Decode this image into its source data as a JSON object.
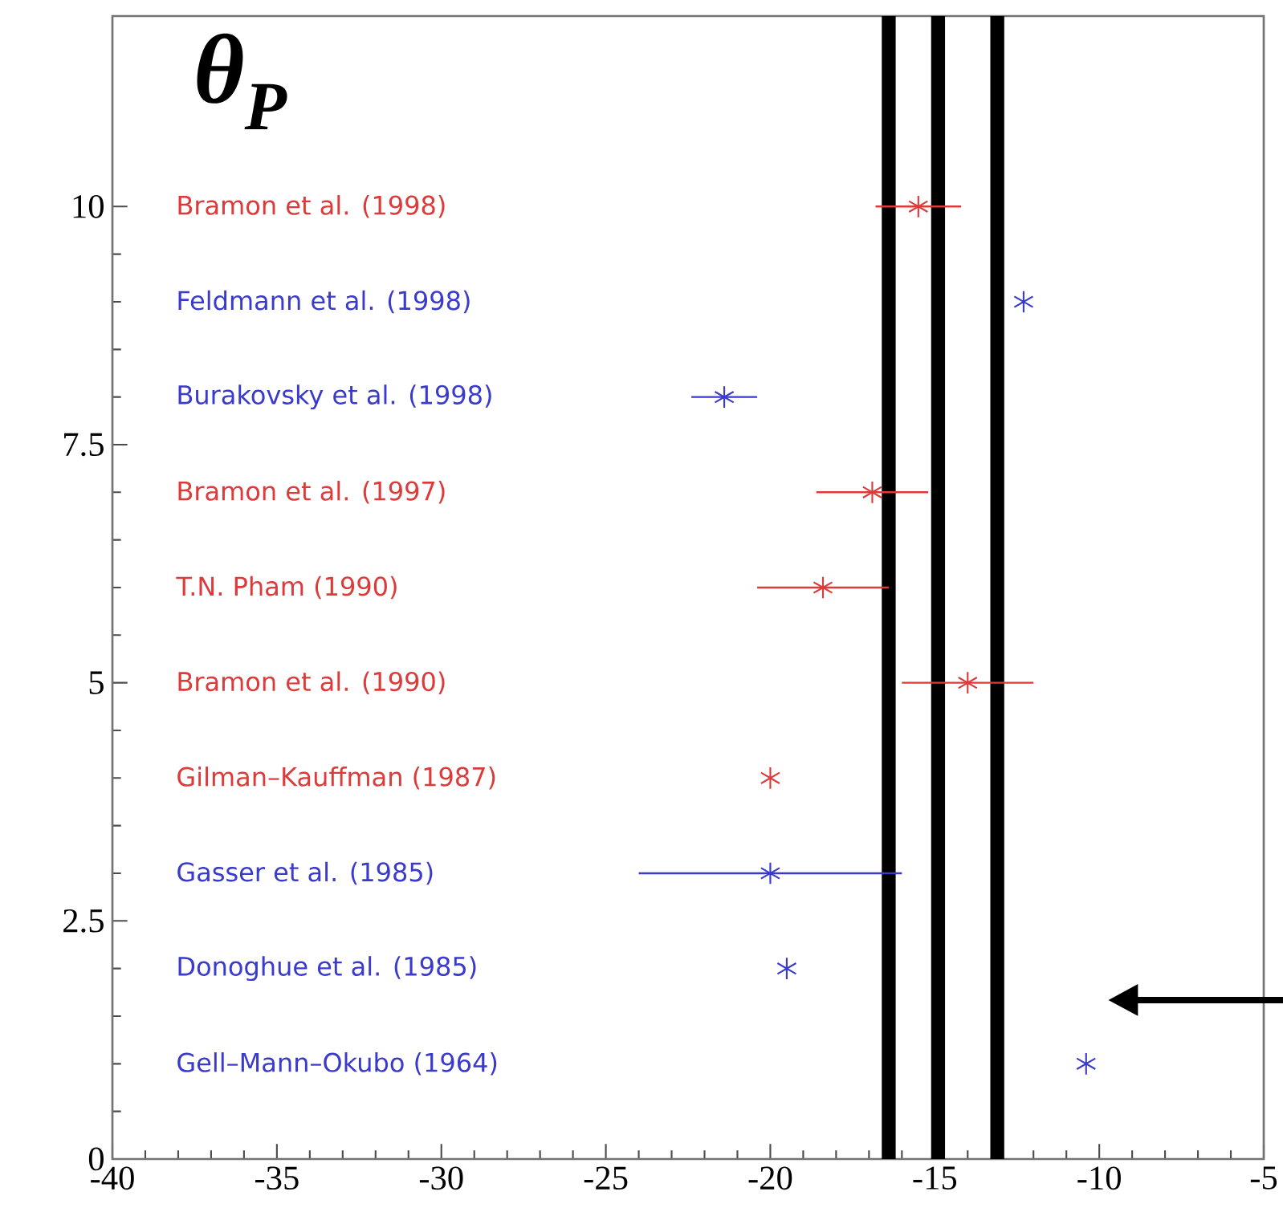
{
  "chart_data": {
    "type": "scatter",
    "title": "θ$_{P}$",
    "marker": "cross",
    "xlim": [
      -40,
      -5
    ],
    "ylim": [
      0,
      12
    ],
    "xticks": [
      -40,
      -35,
      -30,
      -25,
      -20,
      -15,
      -10,
      -5
    ],
    "yticks": [
      0,
      2.5,
      5,
      7.5,
      10
    ],
    "series": [
      {
        "color": "#dd3a3a",
        "x": [
          -15.5,
          -16.9,
          -18.4,
          -14.0,
          -20.0
        ],
        "values": [
          10,
          7,
          6,
          5,
          4
        ],
        "xerrors": [
          1.3,
          1.7,
          2.0,
          2.0,
          null
        ]
      },
      {
        "color": "#3a3acc",
        "x": [
          -12.3,
          -21.4,
          -20.0,
          -19.5,
          -10.4
        ],
        "values": [
          9,
          8,
          3,
          2,
          1
        ],
        "xerrors": [
          null,
          1.0,
          4.0,
          null,
          null
        ]
      }
    ],
    "annotations": [
      "Bramon et al. (1998)",
      "Feldmann et al. (1998)",
      "Burakovsky et al. (1998)",
      "Bramon et al. (1997)",
      "T.N. Pham (1990)",
      "Bramon et al. (1990)",
      "Gilman–Kauffman (1987)",
      "Gasser et al. (1985)",
      "Donoghue et al. (1985)",
      "Gell–Mann–Okubo (1964)"
    ],
    "ref_lines": [
      {
        "axis": "x",
        "value": -16.4,
        "color": "#000000"
      },
      {
        "axis": "x",
        "value": -14.9,
        "color": "#000000"
      },
      {
        "axis": "x",
        "value": -13.1,
        "color": "#000000"
      }
    ]
  }
}
